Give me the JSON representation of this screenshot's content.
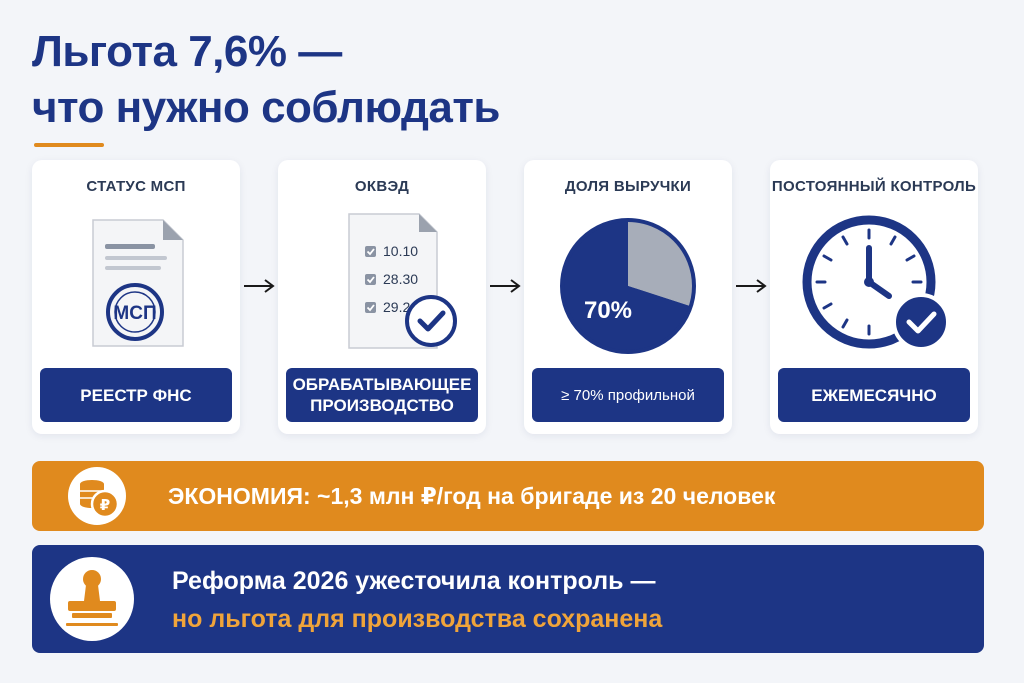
{
  "title": {
    "line1": "Льгота 7,6% —",
    "line2": "что нужно соблюдать"
  },
  "cards": [
    {
      "heading": "СТАТУС МСП",
      "stamp_text": "МСП",
      "pill": "РЕЕСТР ФНС",
      "icon": "document-stamp-icon"
    },
    {
      "heading": "ОКВЭД",
      "codes": [
        "10.10",
        "28.30",
        "29.20"
      ],
      "pill_line1": "ОБРАБАТЫВАЮЩЕЕ",
      "pill_line2": "ПРОИЗВОДСТВО",
      "icon": "checklist-document-icon"
    },
    {
      "heading": "ДОЛЯ ВЫРУЧКИ",
      "pie_label": "70%",
      "pie_share": 0.7,
      "pill": "≥ 70% профильной",
      "icon": "pie-chart-icon"
    },
    {
      "heading": "ПОСТОЯННЫЙ КОНТРОЛЬ",
      "pill": "ЕЖЕМЕСЯЧНО",
      "icon": "clock-check-icon"
    }
  ],
  "savings_banner": {
    "text": "ЭКОНОМИЯ: ~1,3 млн ₽/год на бригаде из 20 человек",
    "icon": "coins-ruble-icon"
  },
  "reform_banner": {
    "line1": "Реформа 2026 ужесточила контроль —",
    "line2": "но льгота для производства сохранена",
    "icon": "stamp-icon"
  },
  "colors": {
    "navy": "#1d3585",
    "orange": "#e08a1e",
    "orange_text": "#f0a43a",
    "pie_gray": "#a7adb9"
  }
}
